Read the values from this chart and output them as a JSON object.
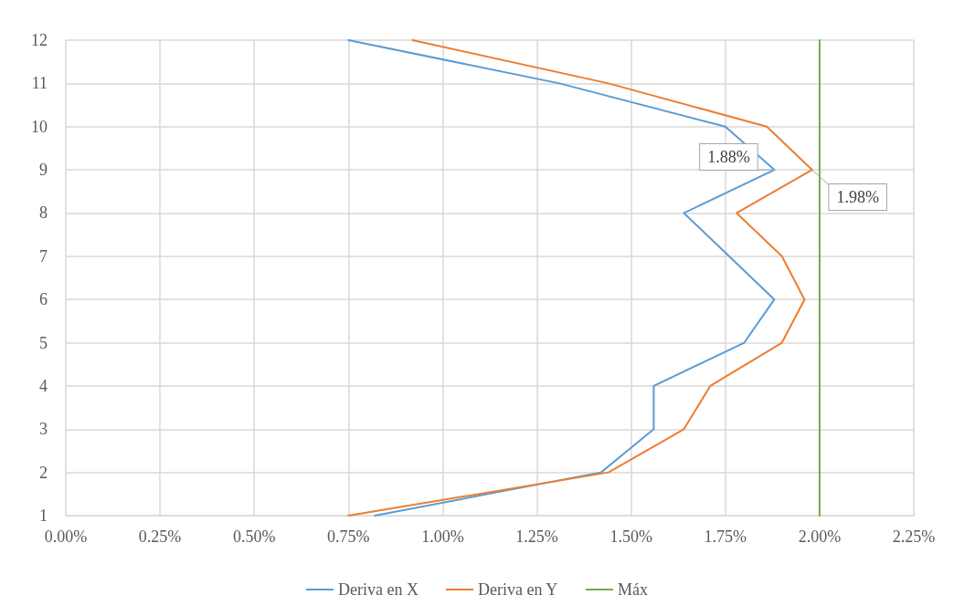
{
  "chart_data": {
    "type": "line",
    "xlim": [
      0,
      2.25
    ],
    "xticks": [
      {
        "value": 0,
        "label": "0.00%"
      },
      {
        "value": 0.25,
        "label": "0.25%"
      },
      {
        "value": 0.5,
        "label": "0.50%"
      },
      {
        "value": 0.75,
        "label": "0.75%"
      },
      {
        "value": 1,
        "label": "1.00%"
      },
      {
        "value": 1.25,
        "label": "1.25%"
      },
      {
        "value": 1.5,
        "label": "1.50%"
      },
      {
        "value": 1.75,
        "label": "1.75%"
      },
      {
        "value": 2,
        "label": "2.00%"
      },
      {
        "value": 2.25,
        "label": "2.25%"
      }
    ],
    "annotations": [
      {
        "text": "1.88%",
        "x": 1.88,
        "y": 9
      },
      {
        "text": "1.98%",
        "x": 1.98,
        "y": 9
      }
    ],
    "ylim": [
      1,
      12
    ],
    "yticks": [
      1,
      2,
      3,
      4,
      5,
      6,
      7,
      8,
      9,
      10,
      11,
      12
    ],
    "grid": true,
    "legend": "bottom",
    "marker": "none",
    "line_style": "solid",
    "series": [
      {
        "name": "Deriva en X",
        "color": "#5b9bd5",
        "x": [
          0.82,
          1.42,
          1.56,
          1.56,
          1.8,
          1.88,
          1.76,
          1.64,
          1.88,
          1.75,
          1.31,
          0.75
        ],
        "values": [
          1,
          2,
          3,
          4,
          5,
          6,
          7,
          8,
          9,
          10,
          11,
          12
        ]
      },
      {
        "name": "Deriva en Y",
        "color": "#ed7d31",
        "x": [
          0.75,
          1.44,
          1.64,
          1.71,
          1.9,
          1.96,
          1.9,
          1.78,
          1.98,
          1.86,
          1.44,
          0.92
        ],
        "values": [
          1,
          2,
          3,
          4,
          5,
          6,
          7,
          8,
          9,
          10,
          11,
          12
        ]
      },
      {
        "name": "Máx",
        "color": "#70ad47",
        "x": [
          2,
          2
        ],
        "values": [
          1,
          12
        ]
      }
    ]
  }
}
